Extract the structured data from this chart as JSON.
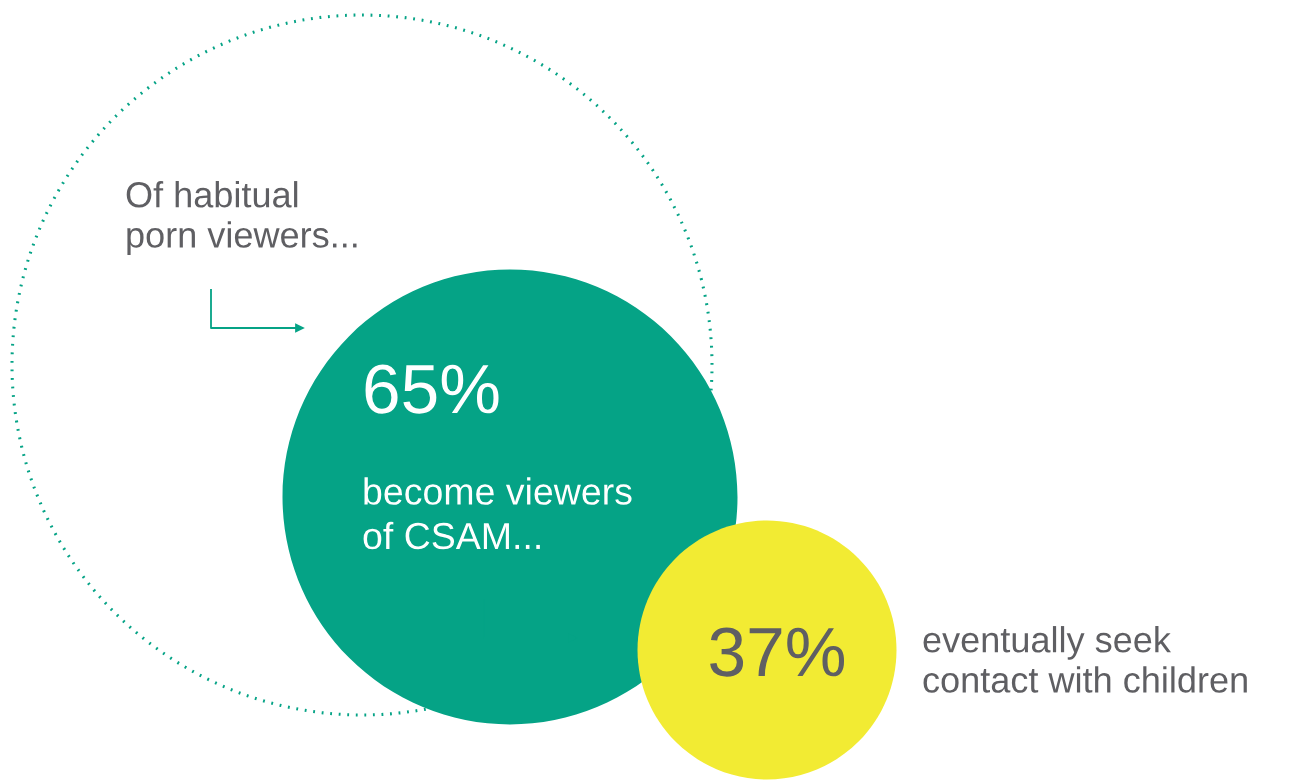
{
  "chart_data": {
    "type": "other",
    "title": "Of habitual\nporn viewers...",
    "categories": [
      "become viewers\nof CSAM...",
      "eventually seek\ncontact with children"
    ],
    "values": [
      65,
      37
    ],
    "value_labels": [
      "65%",
      "37%"
    ],
    "colors": [
      "#05a386",
      "#f2eb33"
    ]
  }
}
